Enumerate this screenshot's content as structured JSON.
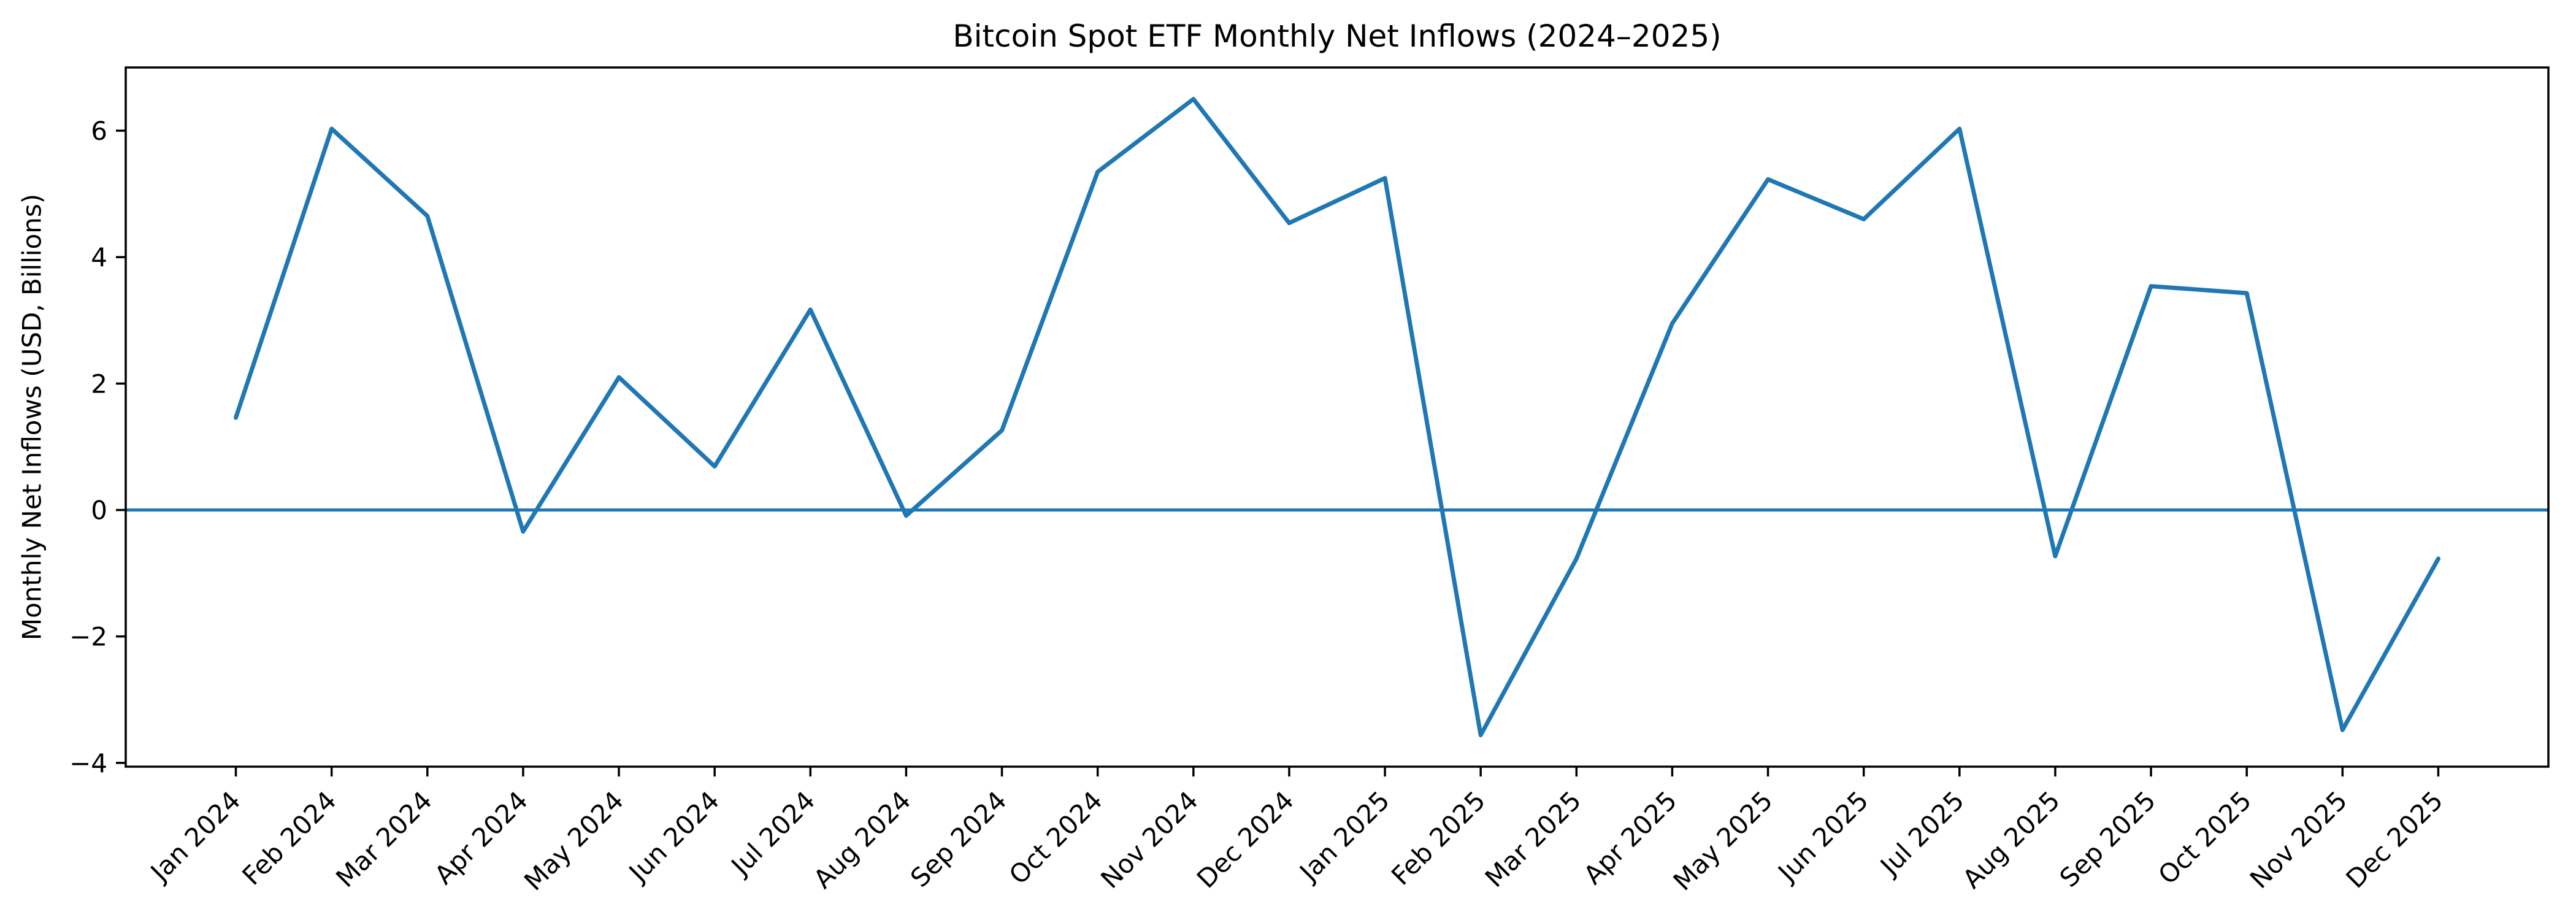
{
  "figure": {
    "background": "#ffffff",
    "axes_color": "#000000",
    "tick_color": "#000000"
  },
  "chart_data": {
    "type": "line",
    "title": "Bitcoin Spot ETF Monthly Net Inflows (2024–2025)",
    "xlabel": "",
    "ylabel": "Monthly Net Inflows (USD, Billions)",
    "categories": [
      "Jan 2024",
      "Feb 2024",
      "Mar 2024",
      "Apr 2024",
      "May 2024",
      "Jun 2024",
      "Jul 2024",
      "Aug 2024",
      "Sep 2024",
      "Oct 2024",
      "Nov 2024",
      "Dec 2024",
      "Jan 2025",
      "Feb 2025",
      "Mar 2025",
      "Apr 2025",
      "May 2025",
      "Jun 2025",
      "Jul 2025",
      "Aug 2025",
      "Sep 2025",
      "Oct 2025",
      "Nov 2025",
      "Dec 2025"
    ],
    "series": [
      {
        "name": "Monthly Net Inflows",
        "color": "#1f77b4",
        "values": [
          1.46,
          6.03,
          4.65,
          -0.34,
          2.1,
          0.69,
          3.17,
          -0.09,
          1.26,
          5.35,
          6.5,
          4.54,
          5.25,
          -3.56,
          -0.77,
          2.95,
          5.23,
          4.6,
          6.03,
          -0.73,
          3.54,
          3.43,
          -3.48,
          -0.77
        ]
      }
    ],
    "zero_line": {
      "value": 0,
      "color": "#1f77b4"
    },
    "ylim": [
      -4.06,
      7.0
    ],
    "yticks": [
      -4,
      -2,
      0,
      2,
      4,
      6
    ],
    "x_margin": 1.15,
    "grid": false,
    "legend": "none",
    "xtick_rotation_deg": 45
  }
}
